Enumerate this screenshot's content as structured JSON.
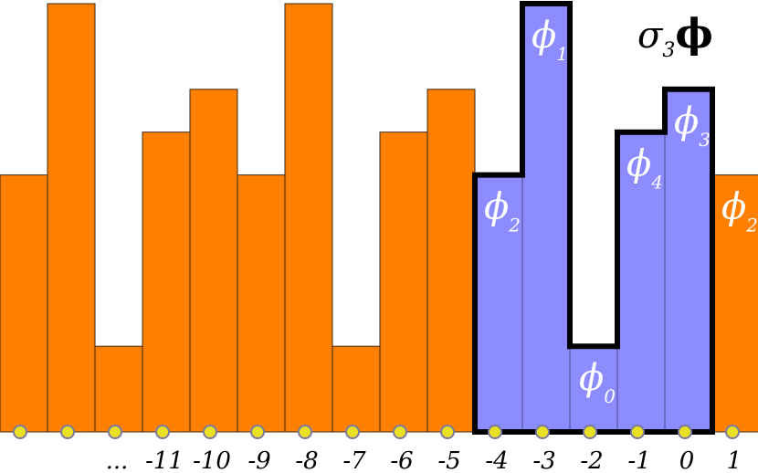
{
  "title": {
    "sigma": "σ",
    "sub": "3",
    "phi": "ϕ"
  },
  "colors": {
    "orange": "#ff8000",
    "blue": "#8c8cff",
    "outline": "#000000",
    "dot": "#e8e020"
  },
  "axis_labels": [
    "...",
    "-11",
    "-10",
    "-9",
    "-8",
    "-7",
    "-6",
    "-5",
    "-4",
    "-3",
    "-2",
    "-1",
    "0",
    "1"
  ],
  "chart_data": {
    "type": "bar",
    "bars": [
      {
        "height": 3,
        "color": "orange"
      },
      {
        "height": 5,
        "color": "orange"
      },
      {
        "height": 1,
        "color": "orange"
      },
      {
        "height": 3.5,
        "color": "orange"
      },
      {
        "height": 4,
        "color": "orange"
      },
      {
        "height": 3,
        "color": "orange"
      },
      {
        "height": 5,
        "color": "orange"
      },
      {
        "height": 1,
        "color": "orange"
      },
      {
        "height": 3.5,
        "color": "orange"
      },
      {
        "height": 4,
        "color": "orange"
      },
      {
        "height": 3,
        "color": "blue",
        "label": "ϕ",
        "sub": "2"
      },
      {
        "height": 5,
        "color": "blue",
        "label": "ϕ",
        "sub": "1"
      },
      {
        "height": 1,
        "color": "blue",
        "label": "ϕ",
        "sub": "0"
      },
      {
        "height": 3.5,
        "color": "blue",
        "label": "ϕ",
        "sub": "4"
      },
      {
        "height": 4,
        "color": "blue",
        "label": "ϕ",
        "sub": "3"
      },
      {
        "height": 3,
        "color": "orange",
        "label": "ϕ",
        "sub": "2"
      }
    ],
    "max_height": 5
  }
}
